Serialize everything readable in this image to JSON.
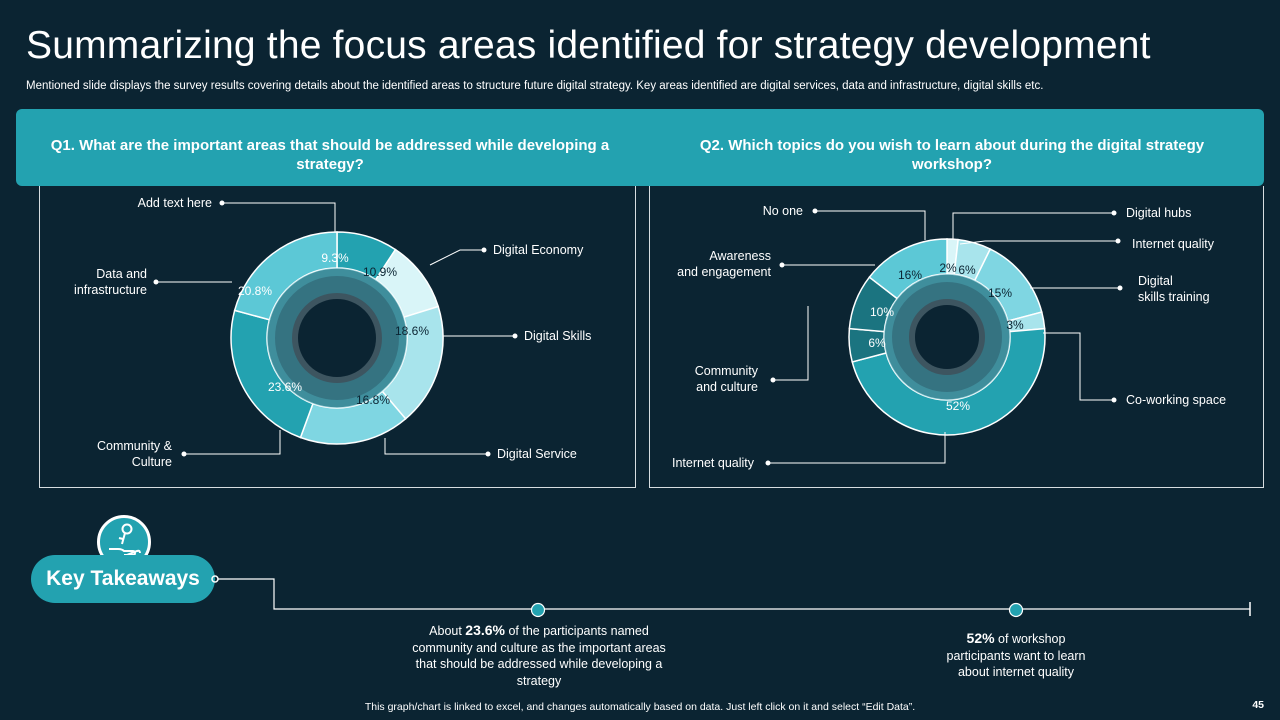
{
  "page": {
    "title": "Summarizing the focus areas identified for strategy development",
    "subtitle": "Mentioned slide displays the survey results covering details about the identified areas to structure future digital strategy. Key areas identified are digital services, data and infrastructure, digital skills etc.",
    "footer": "This graph/chart is linked to excel, and changes automatically based on data. Just left click on it and select “Edit Data”.",
    "page_number": "45"
  },
  "questions": {
    "q1": "Q1. What are the important areas that should be addressed while developing a strategy?",
    "q2": "Q2. Which topics do you wish to learn about during the digital strategy workshop?"
  },
  "colors": {
    "background": "#0b2432",
    "accent": "#23a2b0",
    "light": "#5cc8d6",
    "pale": "#a8e4ec",
    "palest": "#d9f5f8",
    "dark": "#1b7480"
  },
  "chart_data": [
    {
      "type": "pie",
      "subtype": "donut",
      "categories": [
        "Add text here",
        "Digital Economy",
        "Digital Skills",
        "Digital Service",
        "Community & Culture",
        "Data and infrastructure"
      ],
      "values": [
        9.3,
        10.9,
        18.6,
        16.8,
        23.6,
        20.8
      ],
      "value_labels": [
        "9.3%",
        "10.9%",
        "18.6%",
        "16.8%",
        "23.6%",
        "20.8%"
      ],
      "colors": [
        "#23a2b0",
        "#d9f5f8",
        "#a8e4ec",
        "#7fd6e2",
        "#23a2b0",
        "#5cc8d6"
      ],
      "legend": "callouts"
    },
    {
      "type": "pie",
      "subtype": "donut",
      "categories": [
        "Digital hubs",
        "Internet quality",
        "Digital skills training",
        "Co-working space",
        "Internet quality",
        "Community and culture",
        "Awareness and engagement",
        "No one"
      ],
      "values": [
        2,
        6,
        15,
        3,
        52,
        6,
        10,
        16
      ],
      "value_labels": [
        "2%",
        "6%",
        "15%",
        "3%",
        "52%",
        "6%",
        "10%",
        "16%"
      ],
      "colors": [
        "#d9f5f8",
        "#a8e4ec",
        "#7fd6e2",
        "#a8e4ec",
        "#23a2b0",
        "#1b7480",
        "#1b7480",
        "#5cc8d6"
      ],
      "legend": "callouts"
    }
  ],
  "takeaways": {
    "label": "Key Takeaways",
    "icon": "hand-key-icon",
    "note1_prefix": "About ",
    "note1_value": "23.6%",
    "note1_suffix": " of the participants named community and culture as the important areas that should be addressed while developing a strategy",
    "note2_value": "52%",
    "note2_suffix": " of workshop participants want to learn about internet quality"
  }
}
